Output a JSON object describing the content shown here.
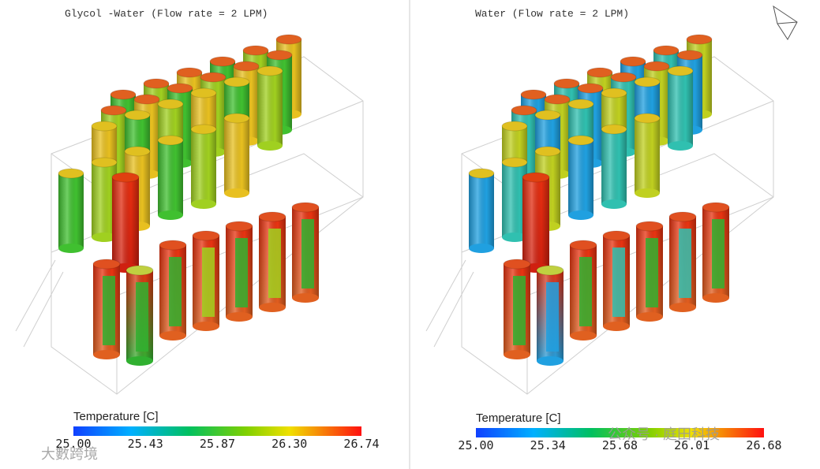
{
  "panels": [
    {
      "title": "Glycol -Water (Flow rate = 2 LPM)",
      "legend": {
        "title": "Temperature [C]",
        "ticks": [
          "25.00",
          "25.43",
          "25.87",
          "26.30",
          "26.74"
        ]
      }
    },
    {
      "title": "Water (Flow rate = 2 LPM)",
      "legend": {
        "title": "Temperature [C]",
        "ticks": [
          "25.00",
          "25.34",
          "25.68",
          "26.01",
          "26.68"
        ]
      }
    }
  ],
  "watermarks": [
    "大數跨境",
    "公众号 · 庭田科技"
  ]
}
